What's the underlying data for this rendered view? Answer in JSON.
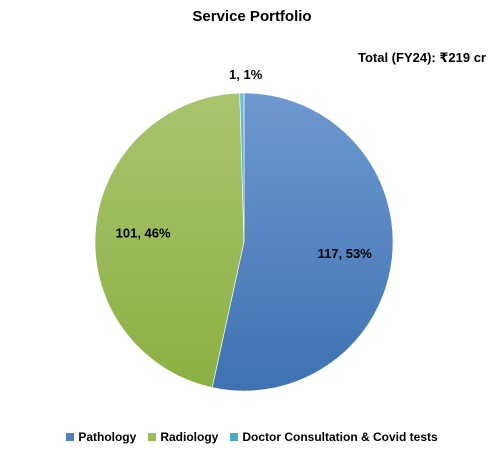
{
  "chart_data": {
    "type": "pie",
    "title": "Service Portfolio",
    "annotation": "Total (FY24): ₹219 cr",
    "slices": [
      {
        "name": "Pathology",
        "value": 117,
        "percent": 53,
        "label": "117, 53%",
        "color": "#4F81BD"
      },
      {
        "name": "Radiology",
        "value": 101,
        "percent": 46,
        "label": "101, 46%",
        "color": "#9BBB59"
      },
      {
        "name": "Doctor Consultation & Covid tests",
        "value": 1,
        "percent": 1,
        "label": "1, 1%",
        "color": "#4BACC6"
      }
    ],
    "legend_position": "bottom"
  }
}
